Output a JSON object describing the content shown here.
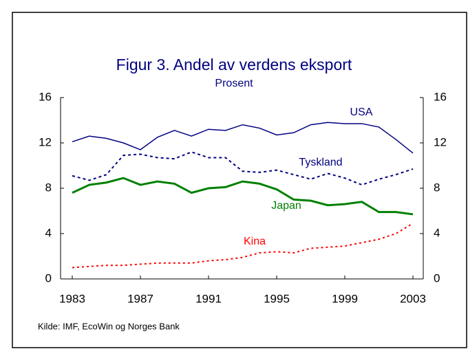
{
  "chart_data": {
    "type": "line",
    "title": "Figur 3. Andel av verdens eksport",
    "subtitle": "Prosent",
    "source": "Kilde: IMF, EcoWin og Norges Bank",
    "x": [
      1983,
      1984,
      1985,
      1986,
      1987,
      1988,
      1989,
      1990,
      1991,
      1992,
      1993,
      1994,
      1995,
      1996,
      1997,
      1998,
      1999,
      2000,
      2001,
      2002,
      2003
    ],
    "xlim": [
      1983,
      2003
    ],
    "xticks": [
      1983,
      1987,
      1991,
      1995,
      1999,
      2003
    ],
    "ylim": [
      0,
      16
    ],
    "yticks": [
      0,
      4,
      8,
      12,
      16
    ],
    "y2lim": [
      0,
      16
    ],
    "y2ticks": [
      0,
      4,
      8,
      12,
      16
    ],
    "grid": false,
    "series": [
      {
        "name": "USA",
        "color": "#000080",
        "style": "solid",
        "values": [
          12.1,
          12.6,
          12.4,
          12.0,
          11.4,
          12.5,
          13.1,
          12.6,
          13.2,
          13.1,
          13.6,
          13.3,
          12.7,
          12.9,
          13.6,
          13.8,
          13.7,
          13.7,
          13.4,
          12.3,
          11.1
        ]
      },
      {
        "name": "Tyskland",
        "color": "#000080",
        "style": "dashed",
        "values": [
          9.1,
          8.7,
          9.2,
          10.9,
          11.0,
          10.7,
          10.6,
          11.2,
          10.7,
          10.7,
          9.5,
          9.4,
          9.6,
          9.2,
          8.8,
          9.3,
          8.9,
          8.3,
          8.8,
          9.2,
          9.7
        ]
      },
      {
        "name": "Japan",
        "color": "#008000",
        "style": "thick",
        "values": [
          7.6,
          8.3,
          8.5,
          8.9,
          8.3,
          8.6,
          8.4,
          7.6,
          8.0,
          8.1,
          8.6,
          8.4,
          7.9,
          7.0,
          6.9,
          6.5,
          6.6,
          6.8,
          5.9,
          5.9,
          5.7
        ]
      },
      {
        "name": "Kina",
        "color": "#ff0000",
        "style": "dotted",
        "values": [
          1.0,
          1.1,
          1.2,
          1.2,
          1.3,
          1.4,
          1.4,
          1.4,
          1.6,
          1.7,
          1.9,
          2.3,
          2.4,
          2.3,
          2.7,
          2.8,
          2.9,
          3.2,
          3.5,
          4.0,
          4.9
        ]
      }
    ]
  }
}
